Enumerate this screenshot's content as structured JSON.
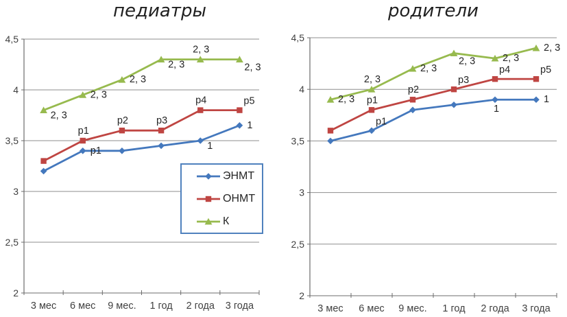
{
  "colors": {
    "axis": "#6b6b6b",
    "gridline": "#8e8e8e",
    "tick_text": "#3f3f3f",
    "point_label_text": "#262626",
    "title_text": "#1f1f1f",
    "legend_border": "#4f81bd",
    "series_blue": "#4478bd",
    "series_red": "#bf4542",
    "series_green": "#97ba4e"
  },
  "legend": {
    "entries": [
      "ЭНМТ",
      "ОНМТ",
      "К"
    ]
  },
  "chart_data": [
    {
      "type": "line",
      "title": "педиатры",
      "categories": [
        "3 мес",
        "6 мес",
        "9 мес.",
        "1 год",
        "2 года",
        "3 года"
      ],
      "ylim": [
        2,
        4.5
      ],
      "ytick_values": [
        2,
        2.5,
        3,
        3.5,
        4,
        4.5
      ],
      "ytick_labels": [
        "2",
        "2,5",
        "3",
        "3,5",
        "4",
        "4,5"
      ],
      "grid": true,
      "legend_position": "inside-center-right",
      "series": [
        {
          "id": "enmt",
          "name": "ЭНМТ",
          "color": "#4478bd",
          "marker": "diamond",
          "values": [
            3.2,
            3.4,
            3.4,
            3.45,
            3.5,
            3.65
          ],
          "point_labels": [
            "",
            "p1",
            "",
            "",
            "1",
            "1"
          ],
          "label_positions": [
            "",
            "right",
            "",
            "",
            "right-below",
            "right"
          ]
        },
        {
          "id": "onmt",
          "name": "ОНМТ",
          "color": "#bf4542",
          "marker": "square",
          "values": [
            3.3,
            3.5,
            3.6,
            3.6,
            3.8,
            3.8
          ],
          "point_labels": [
            "",
            "p1",
            "p2",
            "p3",
            "p4",
            "p5"
          ],
          "label_positions": [
            "",
            "above",
            "above",
            "above",
            "above",
            "above-right"
          ]
        },
        {
          "id": "k",
          "name": "К",
          "color": "#97ba4e",
          "marker": "triangle",
          "values": [
            3.8,
            3.95,
            4.1,
            4.3,
            4.3,
            4.3
          ],
          "point_labels": [
            "2, 3",
            "2, 3",
            "2, 3",
            "2, 3",
            "2, 3",
            "2, 3"
          ],
          "label_positions": [
            "right-below",
            "right",
            "right",
            "right-below",
            "above",
            "below-right"
          ]
        }
      ]
    },
    {
      "type": "line",
      "title": "родители",
      "categories": [
        "3 мес",
        "6 мес",
        "9 мес.",
        "1 год",
        "2 года",
        "3 года"
      ],
      "ylim": [
        2,
        4.5
      ],
      "ytick_values": [
        2,
        2.5,
        3,
        3.5,
        4,
        4.5
      ],
      "ytick_labels": [
        "2",
        "2,5",
        "3",
        "3,5",
        "4",
        "4,5"
      ],
      "grid": true,
      "legend_position": "none",
      "series": [
        {
          "id": "enmt",
          "name": "ЭНМТ",
          "color": "#4478bd",
          "marker": "diamond",
          "values": [
            3.5,
            3.6,
            3.8,
            3.85,
            3.9,
            3.9
          ],
          "point_labels": [
            "",
            "p1",
            "",
            "",
            "1",
            "1"
          ],
          "label_positions": [
            "",
            "above-right",
            "",
            "",
            "below",
            "right"
          ]
        },
        {
          "id": "onmt",
          "name": "ОНМТ",
          "color": "#bf4542",
          "marker": "square",
          "values": [
            3.6,
            3.8,
            3.9,
            4.0,
            4.1,
            4.1
          ],
          "point_labels": [
            "",
            "p1",
            "p2",
            "p3",
            "p4",
            "p5"
          ],
          "label_positions": [
            "",
            "above",
            "above",
            "above-right",
            "above-right",
            "above-right"
          ]
        },
        {
          "id": "k",
          "name": "К",
          "color": "#97ba4e",
          "marker": "triangle",
          "values": [
            3.9,
            4.0,
            4.2,
            4.35,
            4.3,
            4.4
          ],
          "point_labels": [
            "2, 3",
            "2, 3",
            "2, 3",
            "2, 3",
            "2, 3",
            "2, 3"
          ],
          "label_positions": [
            "right",
            "above",
            "right",
            "below-right",
            "right",
            "right"
          ]
        }
      ]
    }
  ]
}
